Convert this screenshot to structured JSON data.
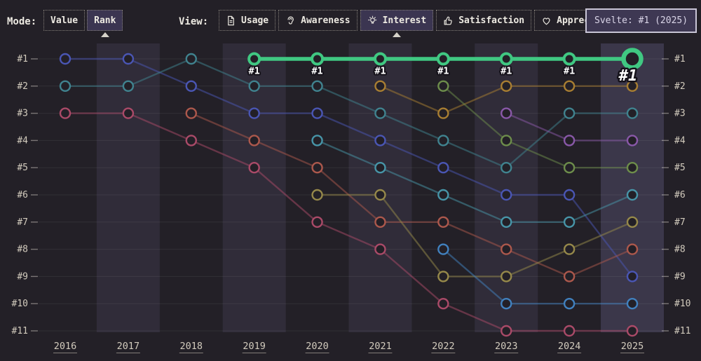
{
  "toolbar": {
    "mode_label": "Mode:",
    "modes": [
      {
        "label": "Value",
        "selected": false
      },
      {
        "label": "Rank",
        "selected": true
      }
    ],
    "view_label": "View:",
    "views": [
      {
        "label": "Usage",
        "icon": "document-icon",
        "selected": false
      },
      {
        "label": "Awareness",
        "icon": "ear-icon",
        "selected": false
      },
      {
        "label": "Interest",
        "icon": "lightbulb-icon",
        "selected": true
      },
      {
        "label": "Satisfaction",
        "icon": "thumbs-up-icon",
        "selected": false
      },
      {
        "label": "Appreciation",
        "icon": "heart-icon",
        "selected": false
      }
    ]
  },
  "tooltip": {
    "text": "Svelte: #1 (2025)"
  },
  "chart_data": {
    "type": "line",
    "subtype": "rank-bump-chart",
    "title": "",
    "x": [
      "2016",
      "2017",
      "2018",
      "2019",
      "2020",
      "2021",
      "2022",
      "2023",
      "2024",
      "2025"
    ],
    "rank_labels": [
      "#1",
      "#2",
      "#3",
      "#4",
      "#5",
      "#6",
      "#7",
      "#8",
      "#9",
      "#10",
      "#11"
    ],
    "ylim": [
      1,
      11
    ],
    "grid": true,
    "dual_rank_axes": true,
    "banded_year_columns": "odd",
    "legend_position": "none",
    "highlighted_series": "Svelte",
    "hovered_point": {
      "series": "Svelte",
      "year": "2025",
      "rank": 1
    },
    "point_label_prefix": "#",
    "series": [
      {
        "id": "series-indigo",
        "color": "#4a56b4",
        "highlight": false,
        "ranks": [
          1,
          1,
          2,
          3,
          3,
          4,
          5,
          6,
          6,
          9
        ]
      },
      {
        "id": "series-teal",
        "color": "#40838f",
        "highlight": false,
        "ranks": [
          2,
          2,
          1,
          2,
          2,
          3,
          4,
          5,
          3,
          3
        ]
      },
      {
        "id": "series-crimson",
        "color": "#aa4a68",
        "highlight": false,
        "ranks": [
          3,
          3,
          4,
          5,
          7,
          8,
          10,
          11,
          11,
          11
        ]
      },
      {
        "id": "series-rust",
        "color": "#ac584c",
        "highlight": false,
        "ranks": [
          null,
          null,
          3,
          4,
          5,
          7,
          7,
          8,
          9,
          8
        ]
      },
      {
        "id": "series-cyan",
        "color": "#4795a8",
        "highlight": false,
        "ranks": [
          null,
          null,
          null,
          null,
          4,
          5,
          6,
          7,
          7,
          6
        ]
      },
      {
        "id": "series-olive",
        "color": "#96894a",
        "highlight": false,
        "ranks": [
          null,
          null,
          null,
          null,
          6,
          6,
          9,
          9,
          8,
          7
        ]
      },
      {
        "id": "series-amber",
        "color": "#a87e32",
        "highlight": false,
        "ranks": [
          null,
          null,
          null,
          null,
          null,
          2,
          3,
          2,
          2,
          2
        ]
      },
      {
        "id": "series-sage",
        "color": "#6d8d4b",
        "highlight": false,
        "ranks": [
          null,
          null,
          null,
          null,
          null,
          null,
          2,
          4,
          5,
          5
        ]
      },
      {
        "id": "series-blue",
        "color": "#4181bf",
        "highlight": false,
        "ranks": [
          null,
          null,
          null,
          null,
          null,
          null,
          8,
          10,
          10,
          10
        ]
      },
      {
        "id": "series-purple",
        "color": "#8958a8",
        "highlight": false,
        "ranks": [
          null,
          null,
          null,
          null,
          null,
          null,
          null,
          3,
          4,
          4
        ]
      },
      {
        "id": "Svelte",
        "color": "#40c882",
        "highlight": true,
        "ranks": [
          null,
          null,
          null,
          1,
          1,
          1,
          1,
          1,
          1,
          1
        ]
      }
    ],
    "colors": {
      "background": "#232027",
      "band": "rgba(128,118,172,0.14)",
      "band_hover": "rgba(140,130,190,0.24)",
      "gridline": "rgba(255,255,255,0.07)",
      "tick": "rgba(230,225,215,0.45)",
      "axis_text": "#d2cbbd",
      "highlight": "#40c882"
    }
  }
}
